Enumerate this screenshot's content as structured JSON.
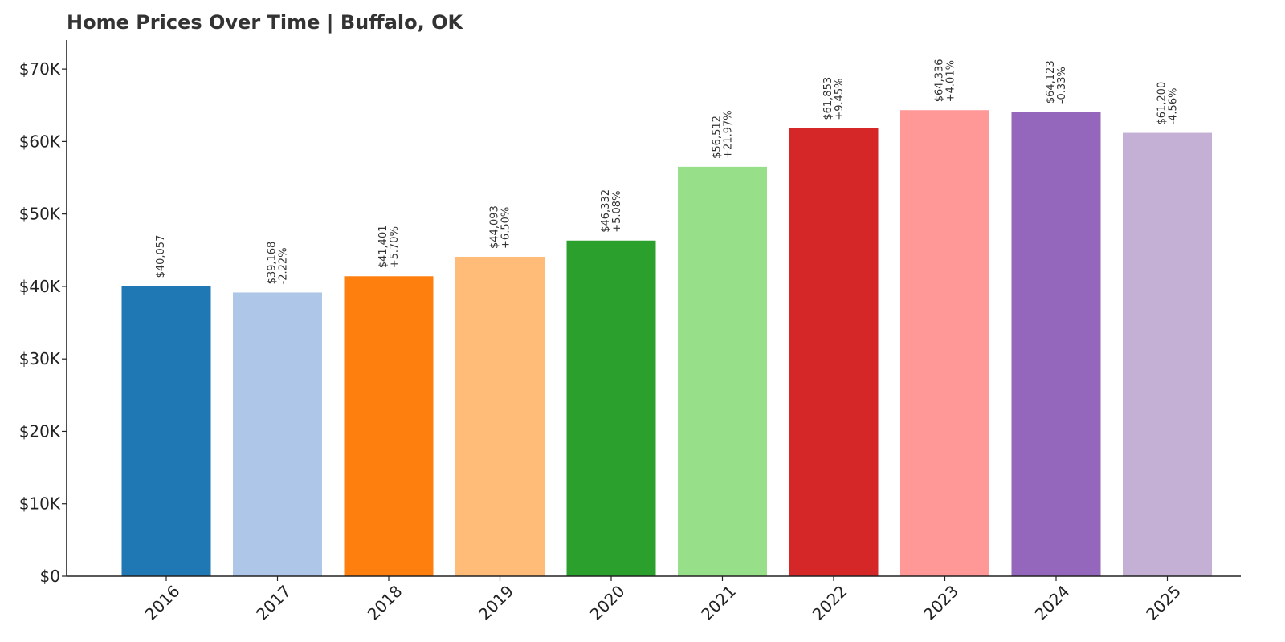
{
  "chart_data": {
    "type": "bar",
    "title": "Home Prices Over Time | Buffalo, OK",
    "xlabel": "",
    "ylabel": "",
    "ylim": [
      0,
      74000
    ],
    "grid": false,
    "categories": [
      "2016",
      "2017",
      "2018",
      "2019",
      "2020",
      "2021",
      "2022",
      "2023",
      "2024",
      "2025"
    ],
    "values": [
      40057,
      39168,
      41401,
      44093,
      46332,
      56512,
      61853,
      64336,
      64123,
      61200
    ],
    "value_labels": [
      "$40,057",
      "$39,168",
      "$41,401",
      "$44,093",
      "$46,332",
      "$56,512",
      "$61,853",
      "$64,336",
      "$64,123",
      "$61,200"
    ],
    "change_labels": [
      "",
      "-2.22%",
      "+5.70%",
      "+6.50%",
      "+5.08%",
      "+21.97%",
      "+9.45%",
      "+4.01%",
      "-0.33%",
      "-4.56%"
    ],
    "colors": [
      "#1f77b4",
      "#aec7e8",
      "#ff7f0e",
      "#ffbb78",
      "#2ca02c",
      "#98df8a",
      "#d62728",
      "#ff9896",
      "#9467bd",
      "#c5b0d5"
    ],
    "yticks": [
      0,
      10000,
      20000,
      30000,
      40000,
      50000,
      60000,
      70000
    ],
    "ytick_labels": [
      "$0",
      "$10K",
      "$20K",
      "$30K",
      "$40K",
      "$50K",
      "$60K",
      "$70K"
    ]
  }
}
